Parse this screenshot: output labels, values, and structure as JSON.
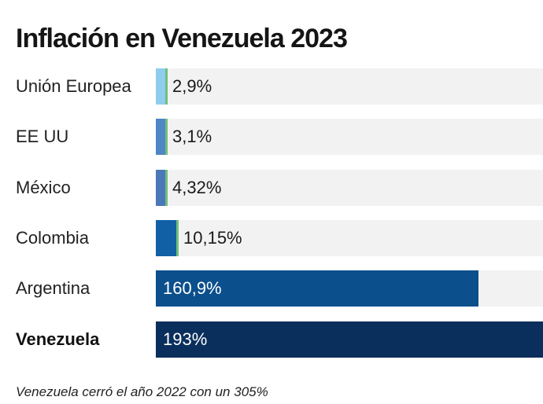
{
  "chart_data": {
    "type": "bar",
    "orientation": "horizontal",
    "title": "Inflación en Venezuela 2023",
    "categories": [
      "Unión Europea",
      "EE UU",
      "México",
      "Colombia",
      "Argentina",
      "Venezuela"
    ],
    "values": [
      2.9,
      3.1,
      4.32,
      10.15,
      160.9,
      193
    ],
    "value_labels": [
      "2,9%",
      "3,1%",
      "4,32%",
      "10,15%",
      "160,9%",
      "193%"
    ],
    "unit": "%",
    "xlim": [
      0,
      193
    ],
    "grid": false,
    "legend": "none",
    "highlight": "Venezuela",
    "bar_colors": [
      "#8fcdf0",
      "#4f86c6",
      "#4a78b8",
      "#1160a6",
      "#0b4f8c",
      "#0a2f5c"
    ],
    "edge_color": "#6ec07a",
    "track_color": "#f2f2f3",
    "note": "Venezuela cerró el año 2022 con un 305%"
  }
}
